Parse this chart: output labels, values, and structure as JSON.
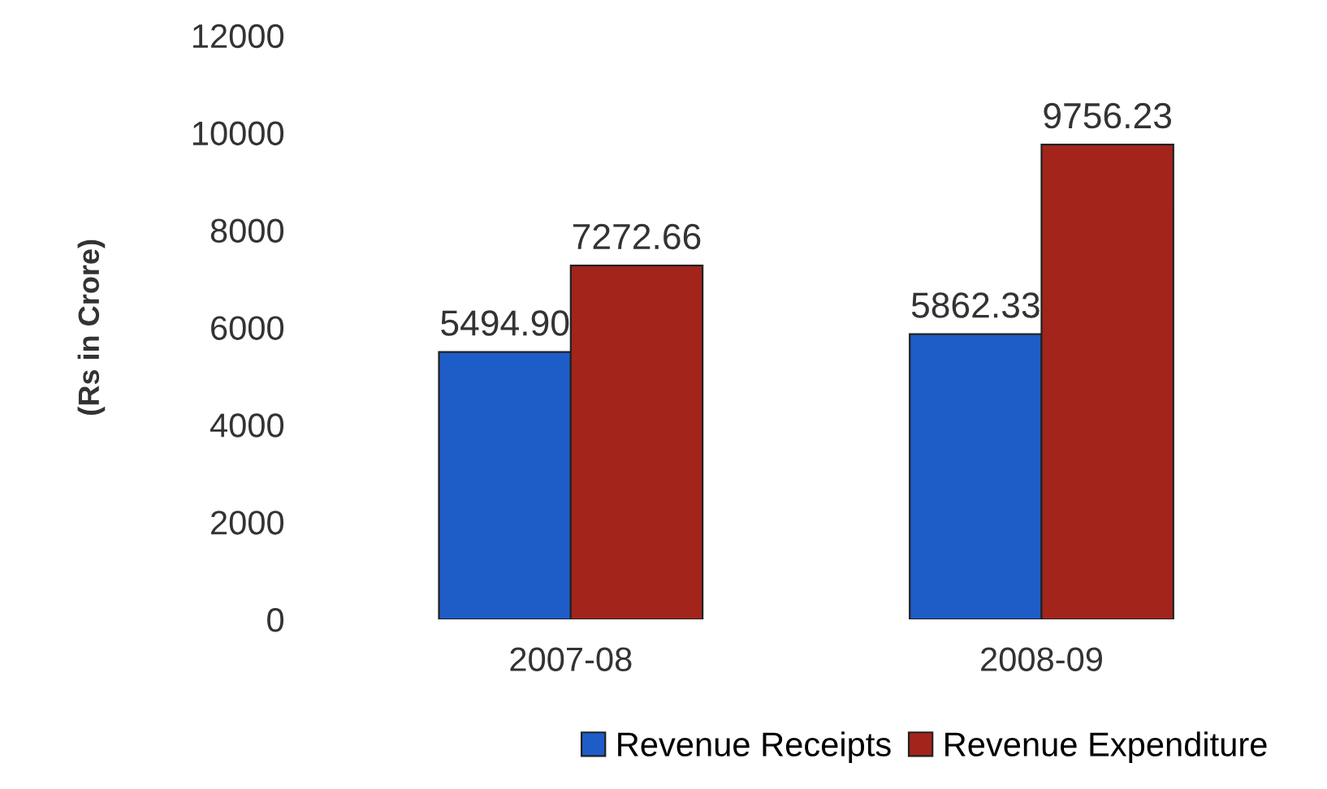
{
  "chart_data": {
    "type": "bar",
    "ylabel": "(Rs in Crore)",
    "categories": [
      "2007-08",
      "2008-09"
    ],
    "series": [
      {
        "name": "Revenue Receipts",
        "color": "#1e5cc8",
        "values": [
          5494.9,
          5862.33
        ],
        "value_labels": [
          "5494.90",
          "5862.33"
        ]
      },
      {
        "name": "Revenue Expenditure",
        "color": "#a3241b",
        "values": [
          7272.66,
          9756.23
        ],
        "value_labels": [
          "7272.66",
          "9756.23"
        ]
      }
    ],
    "ylim": [
      0,
      12000
    ],
    "yticks": [
      0,
      2000,
      4000,
      6000,
      8000,
      10000,
      12000
    ],
    "grid": false,
    "legend": "bottom"
  }
}
